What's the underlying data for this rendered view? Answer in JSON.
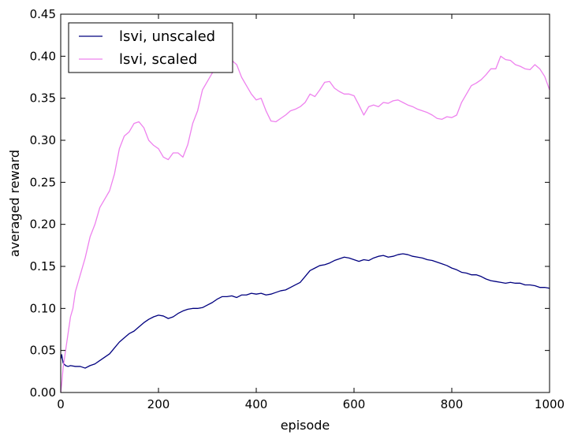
{
  "chart_data": {
    "type": "line",
    "xlabel": "episode",
    "ylabel": "averaged reward",
    "xlim": [
      0,
      1000
    ],
    "ylim": [
      0,
      0.45
    ],
    "xticks": [
      0,
      200,
      400,
      600,
      800,
      1000
    ],
    "xtick_labels": [
      "0",
      "200",
      "400",
      "600",
      "800",
      "1000"
    ],
    "yticks": [
      0,
      0.05,
      0.1,
      0.15,
      0.2,
      0.25,
      0.3,
      0.35,
      0.4,
      0.45
    ],
    "ytick_labels": [
      "0.00",
      "0.05",
      "0.10",
      "0.15",
      "0.20",
      "0.25",
      "0.30",
      "0.35",
      "0.40",
      "0.45"
    ],
    "grid": false,
    "legend_position": "top-left",
    "series": [
      {
        "name": "lsvi, unscaled",
        "color": "#00007f",
        "x": [
          0,
          2,
          5,
          10,
          15,
          20,
          30,
          40,
          50,
          60,
          70,
          80,
          90,
          100,
          110,
          120,
          130,
          140,
          150,
          160,
          170,
          180,
          190,
          200,
          210,
          220,
          230,
          240,
          250,
          260,
          270,
          280,
          290,
          300,
          310,
          320,
          330,
          340,
          350,
          360,
          370,
          380,
          390,
          400,
          410,
          420,
          430,
          440,
          450,
          460,
          470,
          480,
          490,
          500,
          510,
          520,
          530,
          540,
          550,
          560,
          570,
          580,
          590,
          600,
          610,
          620,
          630,
          640,
          650,
          660,
          670,
          680,
          690,
          700,
          710,
          720,
          730,
          740,
          750,
          760,
          770,
          780,
          790,
          800,
          810,
          820,
          830,
          840,
          850,
          860,
          870,
          880,
          890,
          900,
          910,
          920,
          930,
          940,
          950,
          960,
          970,
          980,
          990,
          1000
        ],
        "y": [
          0.04,
          0.045,
          0.035,
          0.032,
          0.031,
          0.032,
          0.031,
          0.031,
          0.029,
          0.032,
          0.034,
          0.038,
          0.042,
          0.046,
          0.053,
          0.06,
          0.065,
          0.07,
          0.073,
          0.078,
          0.083,
          0.087,
          0.09,
          0.092,
          0.091,
          0.088,
          0.09,
          0.094,
          0.097,
          0.099,
          0.1,
          0.1,
          0.101,
          0.104,
          0.107,
          0.111,
          0.114,
          0.114,
          0.115,
          0.113,
          0.116,
          0.116,
          0.118,
          0.117,
          0.118,
          0.116,
          0.117,
          0.119,
          0.121,
          0.122,
          0.125,
          0.128,
          0.131,
          0.138,
          0.145,
          0.148,
          0.151,
          0.152,
          0.154,
          0.157,
          0.159,
          0.161,
          0.16,
          0.158,
          0.156,
          0.158,
          0.157,
          0.16,
          0.162,
          0.163,
          0.161,
          0.162,
          0.164,
          0.165,
          0.164,
          0.162,
          0.161,
          0.16,
          0.158,
          0.157,
          0.155,
          0.153,
          0.151,
          0.148,
          0.146,
          0.143,
          0.142,
          0.14,
          0.14,
          0.138,
          0.135,
          0.133,
          0.132,
          0.131,
          0.13,
          0.131,
          0.13,
          0.13,
          0.128,
          0.128,
          0.127,
          0.125,
          0.125,
          0.124
        ]
      },
      {
        "name": "lsvi, scaled",
        "color": "#ee82ee",
        "x": [
          0,
          2,
          5,
          10,
          15,
          20,
          25,
          30,
          40,
          50,
          60,
          70,
          80,
          90,
          100,
          110,
          120,
          130,
          140,
          150,
          160,
          170,
          180,
          190,
          200,
          210,
          220,
          230,
          240,
          250,
          260,
          270,
          280,
          290,
          300,
          310,
          320,
          330,
          340,
          350,
          360,
          370,
          380,
          390,
          400,
          410,
          420,
          430,
          440,
          450,
          460,
          470,
          480,
          490,
          500,
          510,
          520,
          530,
          540,
          550,
          560,
          570,
          580,
          590,
          600,
          610,
          620,
          630,
          640,
          650,
          660,
          670,
          680,
          690,
          700,
          710,
          720,
          730,
          740,
          750,
          760,
          770,
          780,
          790,
          800,
          810,
          820,
          830,
          840,
          850,
          860,
          870,
          880,
          890,
          900,
          910,
          920,
          930,
          940,
          950,
          960,
          970,
          980,
          990,
          1000
        ],
        "y": [
          0.0,
          0.01,
          0.03,
          0.05,
          0.07,
          0.09,
          0.1,
          0.12,
          0.14,
          0.16,
          0.185,
          0.2,
          0.22,
          0.23,
          0.24,
          0.26,
          0.29,
          0.305,
          0.31,
          0.32,
          0.322,
          0.315,
          0.3,
          0.294,
          0.29,
          0.28,
          0.277,
          0.285,
          0.285,
          0.28,
          0.295,
          0.32,
          0.335,
          0.36,
          0.37,
          0.38,
          0.393,
          0.4,
          0.398,
          0.395,
          0.39,
          0.375,
          0.365,
          0.355,
          0.348,
          0.35,
          0.335,
          0.323,
          0.322,
          0.326,
          0.33,
          0.335,
          0.337,
          0.34,
          0.345,
          0.355,
          0.352,
          0.36,
          0.369,
          0.37,
          0.362,
          0.358,
          0.355,
          0.355,
          0.353,
          0.342,
          0.33,
          0.34,
          0.342,
          0.34,
          0.345,
          0.344,
          0.347,
          0.348,
          0.345,
          0.342,
          0.34,
          0.337,
          0.335,
          0.333,
          0.33,
          0.326,
          0.325,
          0.328,
          0.327,
          0.33,
          0.345,
          0.355,
          0.365,
          0.368,
          0.372,
          0.378,
          0.385,
          0.385,
          0.4,
          0.396,
          0.395,
          0.39,
          0.388,
          0.385,
          0.384,
          0.39,
          0.385,
          0.376,
          0.36
        ]
      }
    ]
  }
}
